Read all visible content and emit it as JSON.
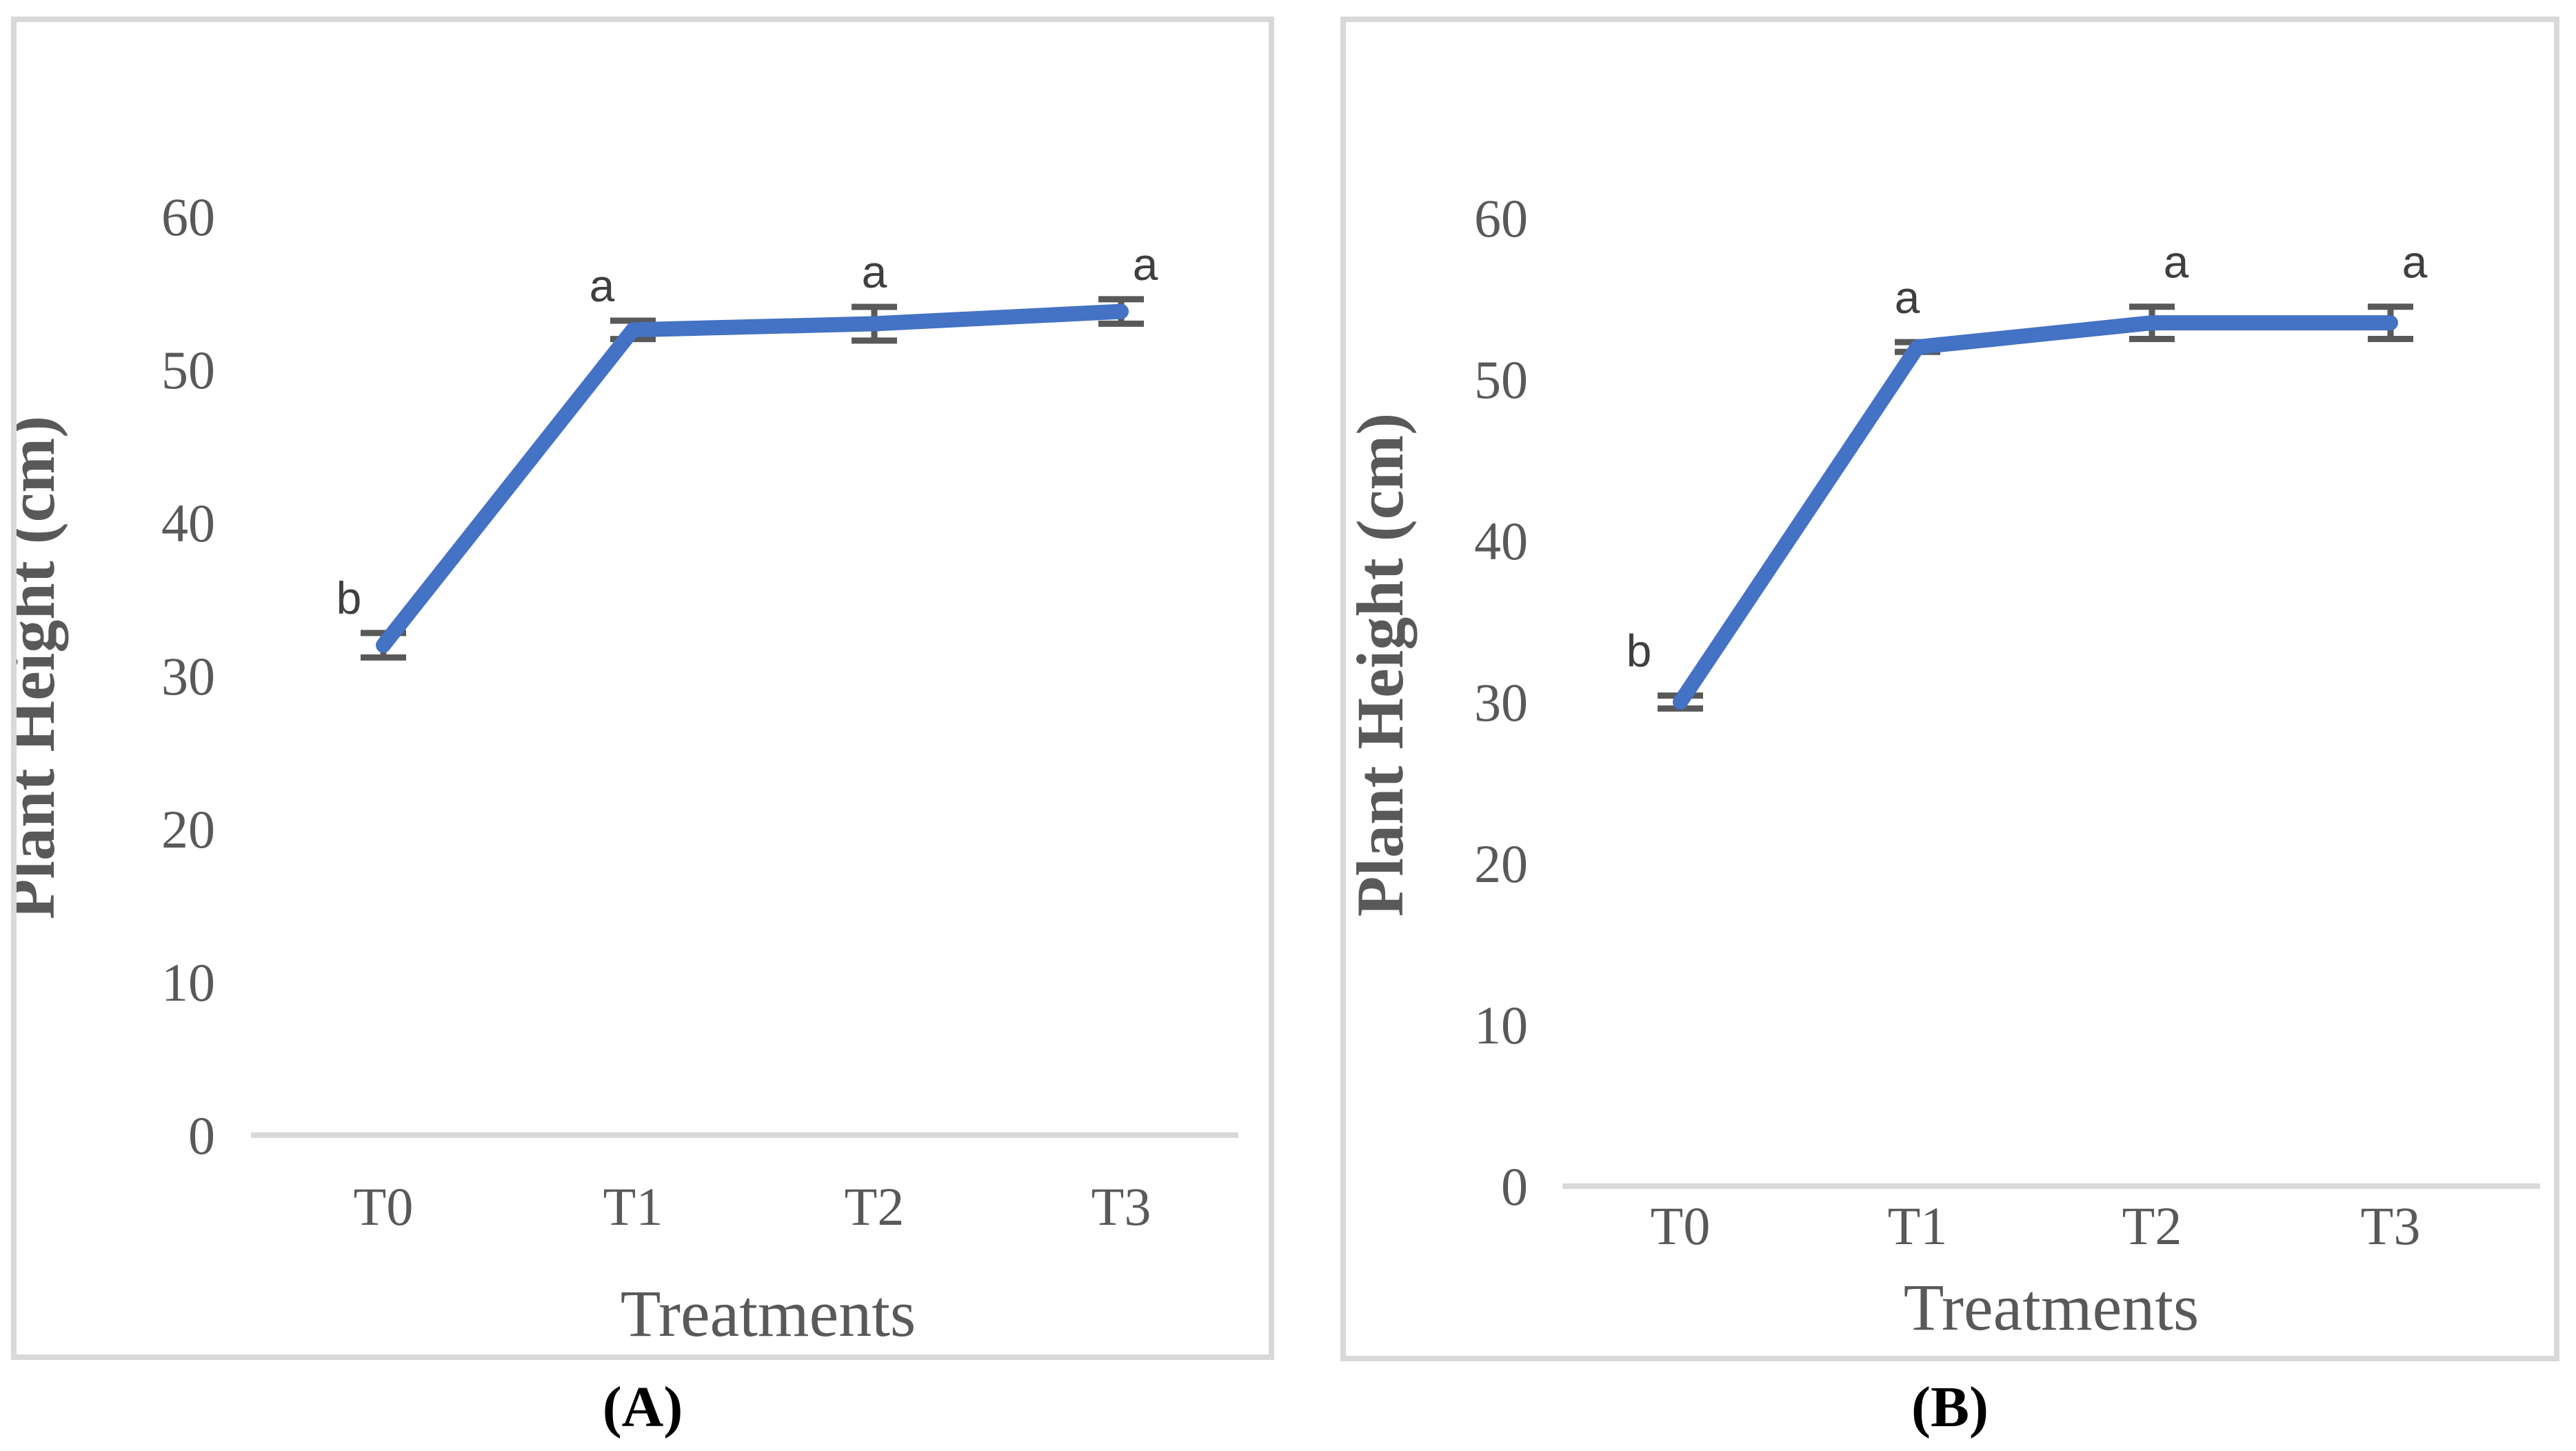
{
  "figure": {
    "description": "Two-panel line chart figure comparing plant height across treatments",
    "panels": [
      "A",
      "B"
    ]
  },
  "colors": {
    "line": "#4472C4",
    "error_bar": "#595959",
    "axis_line": "#D9D9D9",
    "tick_text": "#595959",
    "sig_letter": "#3F3F3F",
    "panel_border": "#D9D9D9"
  },
  "chart_data": [
    {
      "type": "line",
      "panel_label": "(A)",
      "categories": [
        "T0",
        "T1",
        "T2",
        "T3"
      ],
      "values": [
        32,
        52.6,
        53,
        53.8
      ],
      "errors": [
        0.8,
        0.6,
        1.1,
        0.8
      ],
      "sig_letters": [
        "b",
        "a",
        "a",
        "a"
      ],
      "xlabel": "Treatments",
      "ylabel": "Plant Height (cm)",
      "yticks": [
        0,
        10,
        20,
        30,
        40,
        50,
        60
      ],
      "ylim": [
        0,
        66
      ],
      "grid": false,
      "legend": "none",
      "line_color": "#4472C4"
    },
    {
      "type": "line",
      "panel_label": "(B)",
      "categories": [
        "T0",
        "T1",
        "T2",
        "T3"
      ],
      "values": [
        30,
        52,
        53.5,
        53.5
      ],
      "errors": [
        0.4,
        0.3,
        1.0,
        1.0
      ],
      "sig_letters": [
        "b",
        "a",
        "a",
        "a"
      ],
      "xlabel": "Treatments",
      "ylabel": "Plant Height (cm)",
      "yticks": [
        0,
        10,
        20,
        30,
        40,
        50,
        60
      ],
      "ylim": [
        0,
        66
      ],
      "grid": false,
      "legend": "none",
      "line_color": "#4472C4"
    }
  ]
}
